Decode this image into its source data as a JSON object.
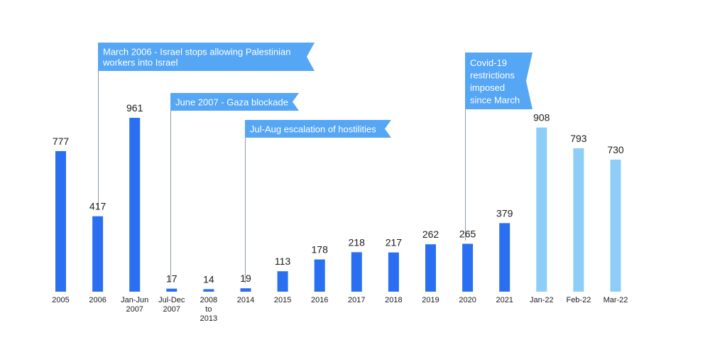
{
  "chart_data": {
    "type": "bar",
    "title": "",
    "xlabel": "",
    "ylabel": "",
    "ylim": [
      0,
      1000
    ],
    "grid": false,
    "categories": [
      [
        "2005"
      ],
      [
        "2006"
      ],
      [
        "Jan-Jun",
        "2007"
      ],
      [
        "Jul-Dec",
        "2007"
      ],
      [
        "2008",
        "to",
        "2013"
      ],
      [
        "2014"
      ],
      [
        "2015"
      ],
      [
        "2016"
      ],
      [
        "2017"
      ],
      [
        "2018"
      ],
      [
        "2019"
      ],
      [
        "2020"
      ],
      [
        "2021"
      ],
      [
        "Jan-22"
      ],
      [
        "Feb-22"
      ],
      [
        "Mar-22"
      ]
    ],
    "values": [
      777,
      417,
      961,
      17,
      14,
      19,
      113,
      178,
      218,
      217,
      262,
      265,
      379,
      908,
      793,
      730
    ],
    "colors": {
      "annual": "#2a6ff2",
      "monthly": "#8ecdf7",
      "annotation_flag": "#55a6f5",
      "annotation_line": "#8a9aa5"
    },
    "bar_color_keys": [
      "annual",
      "annual",
      "annual",
      "annual",
      "annual",
      "annual",
      "annual",
      "annual",
      "annual",
      "annual",
      "annual",
      "annual",
      "annual",
      "monthly",
      "monthly",
      "monthly"
    ],
    "annotations": [
      {
        "category_index": 1,
        "lines": [
          "March 2006 - Israel stops allowing Palestinian",
          "workers into Israel"
        ]
      },
      {
        "category_index": 3,
        "lines": [
          "June 2007 - Gaza blockade"
        ]
      },
      {
        "category_index": 5,
        "lines": [
          "Jul-Aug escalation of hostilities"
        ]
      },
      {
        "category_index": 11,
        "lines": [
          "Covid-19",
          "restrictions",
          "imposed",
          "since March"
        ]
      }
    ]
  }
}
